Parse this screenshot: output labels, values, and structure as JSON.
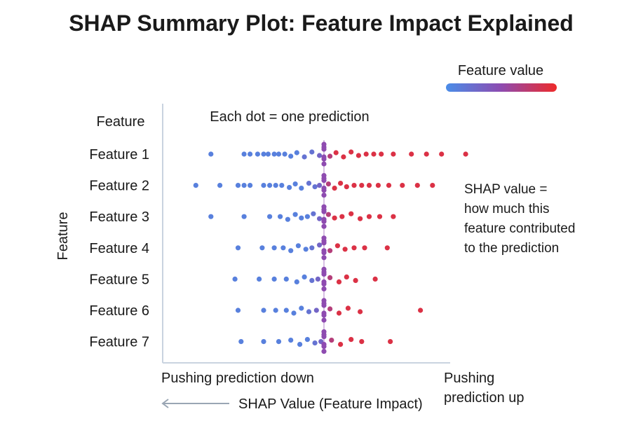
{
  "chart_data": {
    "type": "scatter",
    "title": "SHAP Summary Plot: Feature Impact Explained",
    "ylabel": "Feature",
    "y_header": "Feature",
    "xlabel": "SHAP Value (Feature Impact)",
    "x_left_label": "Pushing prediction down",
    "x_right_label": [
      "Pushing",
      "prediction up"
    ],
    "annotation_top": "Each dot = one prediction",
    "annotation_right": [
      "SHAP value =",
      "how much this",
      "feature contributed",
      "to the prediction"
    ],
    "legend": {
      "title": "Feature value",
      "placement": "top-right",
      "low_color": "#4a8de8",
      "mid_color": "#8e4bb0",
      "high_color": "#ee2a2a"
    },
    "x_range": [
      -1,
      1
    ],
    "grid": false,
    "features": [
      {
        "name": "Feature 1",
        "points": [
          [
            -0.75,
            0.1
          ],
          [
            -0.53,
            0.1
          ],
          [
            -0.49,
            0.1
          ],
          [
            -0.44,
            0.1
          ],
          [
            -0.4,
            0.1
          ],
          [
            -0.37,
            0.1
          ],
          [
            -0.33,
            0.1
          ],
          [
            -0.3,
            0.1
          ],
          [
            -0.26,
            0.1
          ],
          [
            -0.22,
            0.1
          ],
          [
            -0.18,
            0.1
          ],
          [
            -0.13,
            0.2
          ],
          [
            -0.08,
            0.2
          ],
          [
            -0.03,
            0.3
          ],
          [
            0.0,
            0.5
          ],
          [
            0.0,
            0.5
          ],
          [
            0.04,
            0.7
          ],
          [
            0.08,
            0.9
          ],
          [
            0.13,
            0.9
          ],
          [
            0.18,
            0.9
          ],
          [
            0.23,
            0.9
          ],
          [
            0.28,
            0.9
          ],
          [
            0.33,
            0.9
          ],
          [
            0.38,
            0.9
          ],
          [
            0.46,
            0.9
          ],
          [
            0.58,
            0.9
          ],
          [
            0.68,
            0.9
          ],
          [
            0.78,
            0.9
          ],
          [
            0.94,
            0.9
          ]
        ]
      },
      {
        "name": "Feature 2",
        "points": [
          [
            -0.85,
            0.1
          ],
          [
            -0.69,
            0.1
          ],
          [
            -0.57,
            0.1
          ],
          [
            -0.53,
            0.1
          ],
          [
            -0.49,
            0.1
          ],
          [
            -0.4,
            0.1
          ],
          [
            -0.36,
            0.1
          ],
          [
            -0.32,
            0.1
          ],
          [
            -0.28,
            0.1
          ],
          [
            -0.23,
            0.1
          ],
          [
            -0.19,
            0.1
          ],
          [
            -0.15,
            0.1
          ],
          [
            -0.1,
            0.2
          ],
          [
            -0.06,
            0.2
          ],
          [
            -0.03,
            0.3
          ],
          [
            0.0,
            0.5
          ],
          [
            0.0,
            0.5
          ],
          [
            0.03,
            0.7
          ],
          [
            0.07,
            0.9
          ],
          [
            0.11,
            0.9
          ],
          [
            0.15,
            0.9
          ],
          [
            0.2,
            0.9
          ],
          [
            0.25,
            0.9
          ],
          [
            0.3,
            0.9
          ],
          [
            0.36,
            0.9
          ],
          [
            0.43,
            0.9
          ],
          [
            0.52,
            0.9
          ],
          [
            0.62,
            0.9
          ],
          [
            0.72,
            0.9
          ]
        ]
      },
      {
        "name": "Feature 3",
        "points": [
          [
            -0.75,
            0.1
          ],
          [
            -0.53,
            0.1
          ],
          [
            -0.36,
            0.1
          ],
          [
            -0.29,
            0.1
          ],
          [
            -0.24,
            0.1
          ],
          [
            -0.19,
            0.1
          ],
          [
            -0.15,
            0.1
          ],
          [
            -0.11,
            0.1
          ],
          [
            -0.07,
            0.2
          ],
          [
            -0.03,
            0.3
          ],
          [
            0.0,
            0.5
          ],
          [
            0.0,
            0.5
          ],
          [
            0.03,
            0.7
          ],
          [
            0.07,
            0.9
          ],
          [
            0.12,
            0.9
          ],
          [
            0.18,
            0.9
          ],
          [
            0.24,
            0.9
          ],
          [
            0.3,
            0.9
          ],
          [
            0.37,
            0.9
          ],
          [
            0.46,
            0.9
          ]
        ]
      },
      {
        "name": "Feature 4",
        "points": [
          [
            -0.57,
            0.1
          ],
          [
            -0.41,
            0.1
          ],
          [
            -0.33,
            0.1
          ],
          [
            -0.27,
            0.1
          ],
          [
            -0.22,
            0.1
          ],
          [
            -0.17,
            0.1
          ],
          [
            -0.12,
            0.1
          ],
          [
            -0.08,
            0.2
          ],
          [
            -0.03,
            0.3
          ],
          [
            0.0,
            0.5
          ],
          [
            0.0,
            0.5
          ],
          [
            0.04,
            0.7
          ],
          [
            0.09,
            0.9
          ],
          [
            0.14,
            0.9
          ],
          [
            0.2,
            0.9
          ],
          [
            0.27,
            0.9
          ],
          [
            0.42,
            0.9
          ]
        ]
      },
      {
        "name": "Feature 5",
        "points": [
          [
            -0.59,
            0.1
          ],
          [
            -0.43,
            0.1
          ],
          [
            -0.33,
            0.1
          ],
          [
            -0.25,
            0.1
          ],
          [
            -0.18,
            0.1
          ],
          [
            -0.13,
            0.1
          ],
          [
            -0.08,
            0.2
          ],
          [
            -0.04,
            0.3
          ],
          [
            0.0,
            0.5
          ],
          [
            0.0,
            0.5
          ],
          [
            0.04,
            0.7
          ],
          [
            0.1,
            0.9
          ],
          [
            0.15,
            0.9
          ],
          [
            0.21,
            0.9
          ],
          [
            0.34,
            0.9
          ]
        ]
      },
      {
        "name": "Feature 6",
        "points": [
          [
            -0.57,
            0.1
          ],
          [
            -0.4,
            0.1
          ],
          [
            -0.32,
            0.1
          ],
          [
            -0.25,
            0.1
          ],
          [
            -0.2,
            0.1
          ],
          [
            -0.15,
            0.1
          ],
          [
            -0.1,
            0.2
          ],
          [
            -0.05,
            0.3
          ],
          [
            0.0,
            0.5
          ],
          [
            0.0,
            0.5
          ],
          [
            0.04,
            0.7
          ],
          [
            0.1,
            0.9
          ],
          [
            0.16,
            0.9
          ],
          [
            0.24,
            0.9
          ],
          [
            0.64,
            0.9
          ]
        ]
      },
      {
        "name": "Feature 7",
        "points": [
          [
            -0.55,
            0.1
          ],
          [
            -0.4,
            0.1
          ],
          [
            -0.3,
            0.1
          ],
          [
            -0.22,
            0.1
          ],
          [
            -0.16,
            0.1
          ],
          [
            -0.11,
            0.1
          ],
          [
            -0.06,
            0.2
          ],
          [
            -0.02,
            0.3
          ],
          [
            0.0,
            0.5
          ],
          [
            0.0,
            0.5
          ],
          [
            0.05,
            0.7
          ],
          [
            0.11,
            0.9
          ],
          [
            0.18,
            0.9
          ],
          [
            0.25,
            0.9
          ],
          [
            0.44,
            0.9
          ]
        ]
      }
    ],
    "point_value_scale": "each point is [shap_value, feature_value 0=low 1=high]"
  }
}
